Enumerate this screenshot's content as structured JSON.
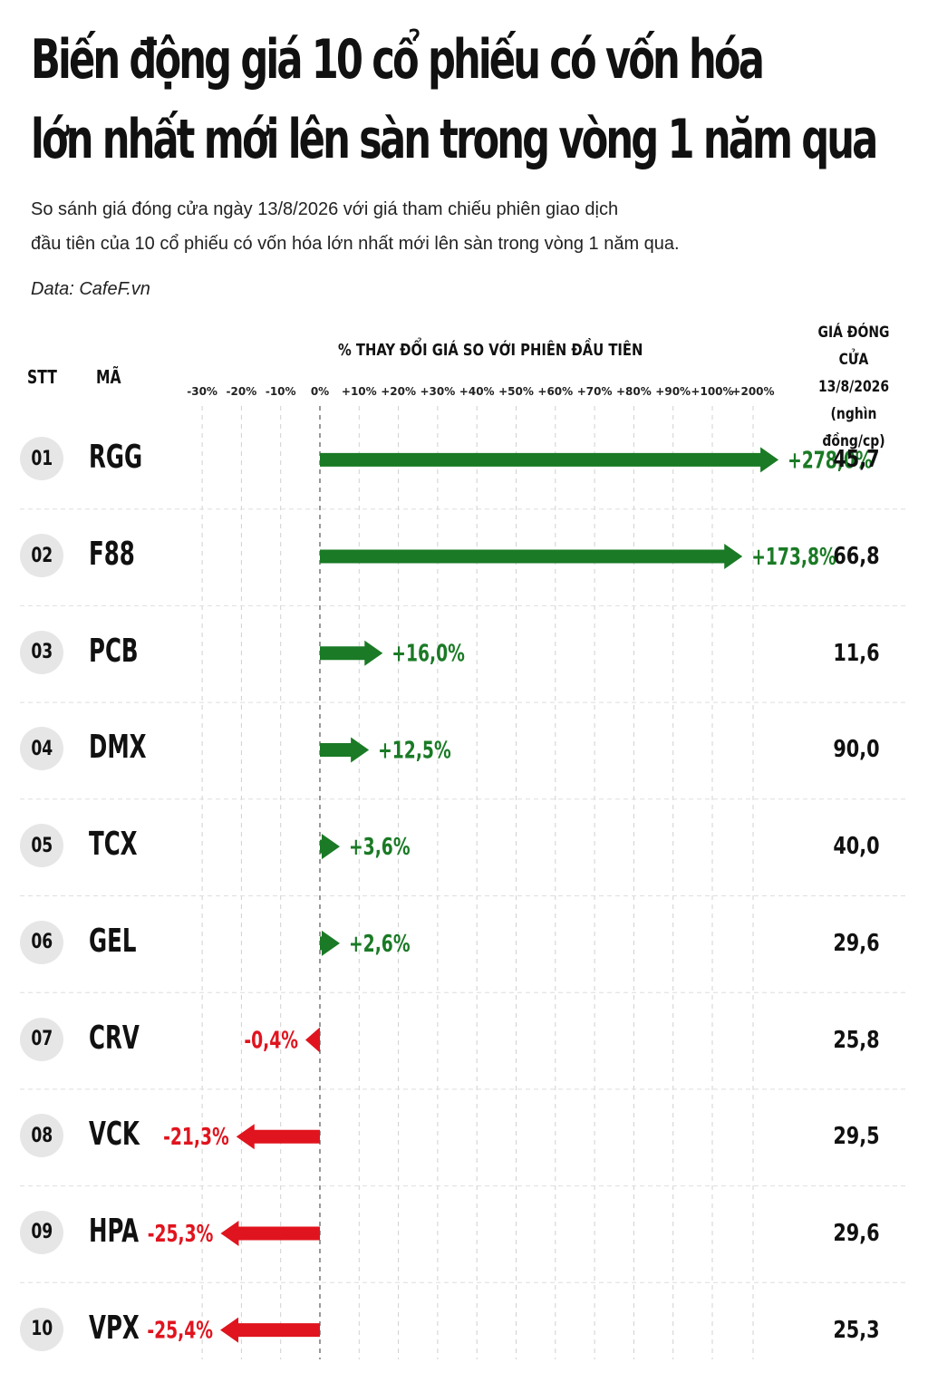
{
  "header": {
    "title_line1": "Biến động giá 10 cổ phiếu có vốn hóa",
    "title_line2": "lớn nhất mới lên sàn trong vòng 1 năm qua",
    "subtitle_line1": "So sánh giá đóng cửa ngày 13/8/2026 với giá tham chiếu phiên giao dịch",
    "subtitle_line2": "đầu tiên của 10 cổ phiếu có vốn hóa lớn nhất mới lên sàn trong vòng 1 năm qua.",
    "source": "Data: CafeF.vn"
  },
  "columns": {
    "stt": "STT",
    "ticker": "MÃ",
    "change": "% THAY ĐỔI GIÁ SO VỚI PHIÊN ĐẦU TIÊN",
    "price_line1": "GIÁ ĐÓNG CỬA",
    "price_line2": "13/8/2026",
    "price_line3": "(nghìn đồng/cp)"
  },
  "colors": {
    "positive": "#1a7a25",
    "negative": "#e0141e",
    "grid": "#d0d0d0",
    "badge": "#e6e6e6"
  },
  "chart_data": {
    "type": "bar",
    "orientation": "horizontal",
    "xlabel": "% THAY ĐỔI GIÁ SO VỚI PHIÊN ĐẦU TIÊN",
    "x_ticks": [
      "-30%",
      "-20%",
      "-10%",
      "0%",
      "+10%",
      "+20%",
      "+30%",
      "+40%",
      "+50%",
      "+60%",
      "+70%",
      "+80%",
      "+90%",
      "+100%",
      "+200%"
    ],
    "x_tick_values": [
      -30,
      -20,
      -10,
      0,
      10,
      20,
      30,
      40,
      50,
      60,
      70,
      80,
      90,
      100,
      200
    ],
    "axis_note": "broken scale: linear -30% to +100%, compressed beyond +100%",
    "grid": true,
    "categories": [
      "RGG",
      "F88",
      "PCB",
      "DMX",
      "TCX",
      "GEL",
      "CRV",
      "VCK",
      "HPA",
      "VPX"
    ],
    "series": [
      {
        "values": [
          278.0,
          173.8,
          16.0,
          12.5,
          3.6,
          2.6,
          -0.4,
          -21.3,
          -25.3,
          -25.4
        ],
        "labels": [
          "+278,0%",
          "+173,8%",
          "+16,0%",
          "+12,5%",
          "+3,6%",
          "+2,6%",
          "-0,4%",
          "-21,3%",
          "-25,3%",
          "-25,4%"
        ]
      }
    ]
  },
  "rows": [
    {
      "stt": "01",
      "ticker": "RGG",
      "price": "45,7"
    },
    {
      "stt": "02",
      "ticker": "F88",
      "price": "66,8"
    },
    {
      "stt": "03",
      "ticker": "PCB",
      "price": "11,6"
    },
    {
      "stt": "04",
      "ticker": "DMX",
      "price": "90,0"
    },
    {
      "stt": "05",
      "ticker": "TCX",
      "price": "40,0"
    },
    {
      "stt": "06",
      "ticker": "GEL",
      "price": "29,6"
    },
    {
      "stt": "07",
      "ticker": "CRV",
      "price": "25,8"
    },
    {
      "stt": "08",
      "ticker": "VCK",
      "price": "29,5"
    },
    {
      "stt": "09",
      "ticker": "HPA",
      "price": "29,6"
    },
    {
      "stt": "10",
      "ticker": "VPX",
      "price": "25,3"
    }
  ]
}
